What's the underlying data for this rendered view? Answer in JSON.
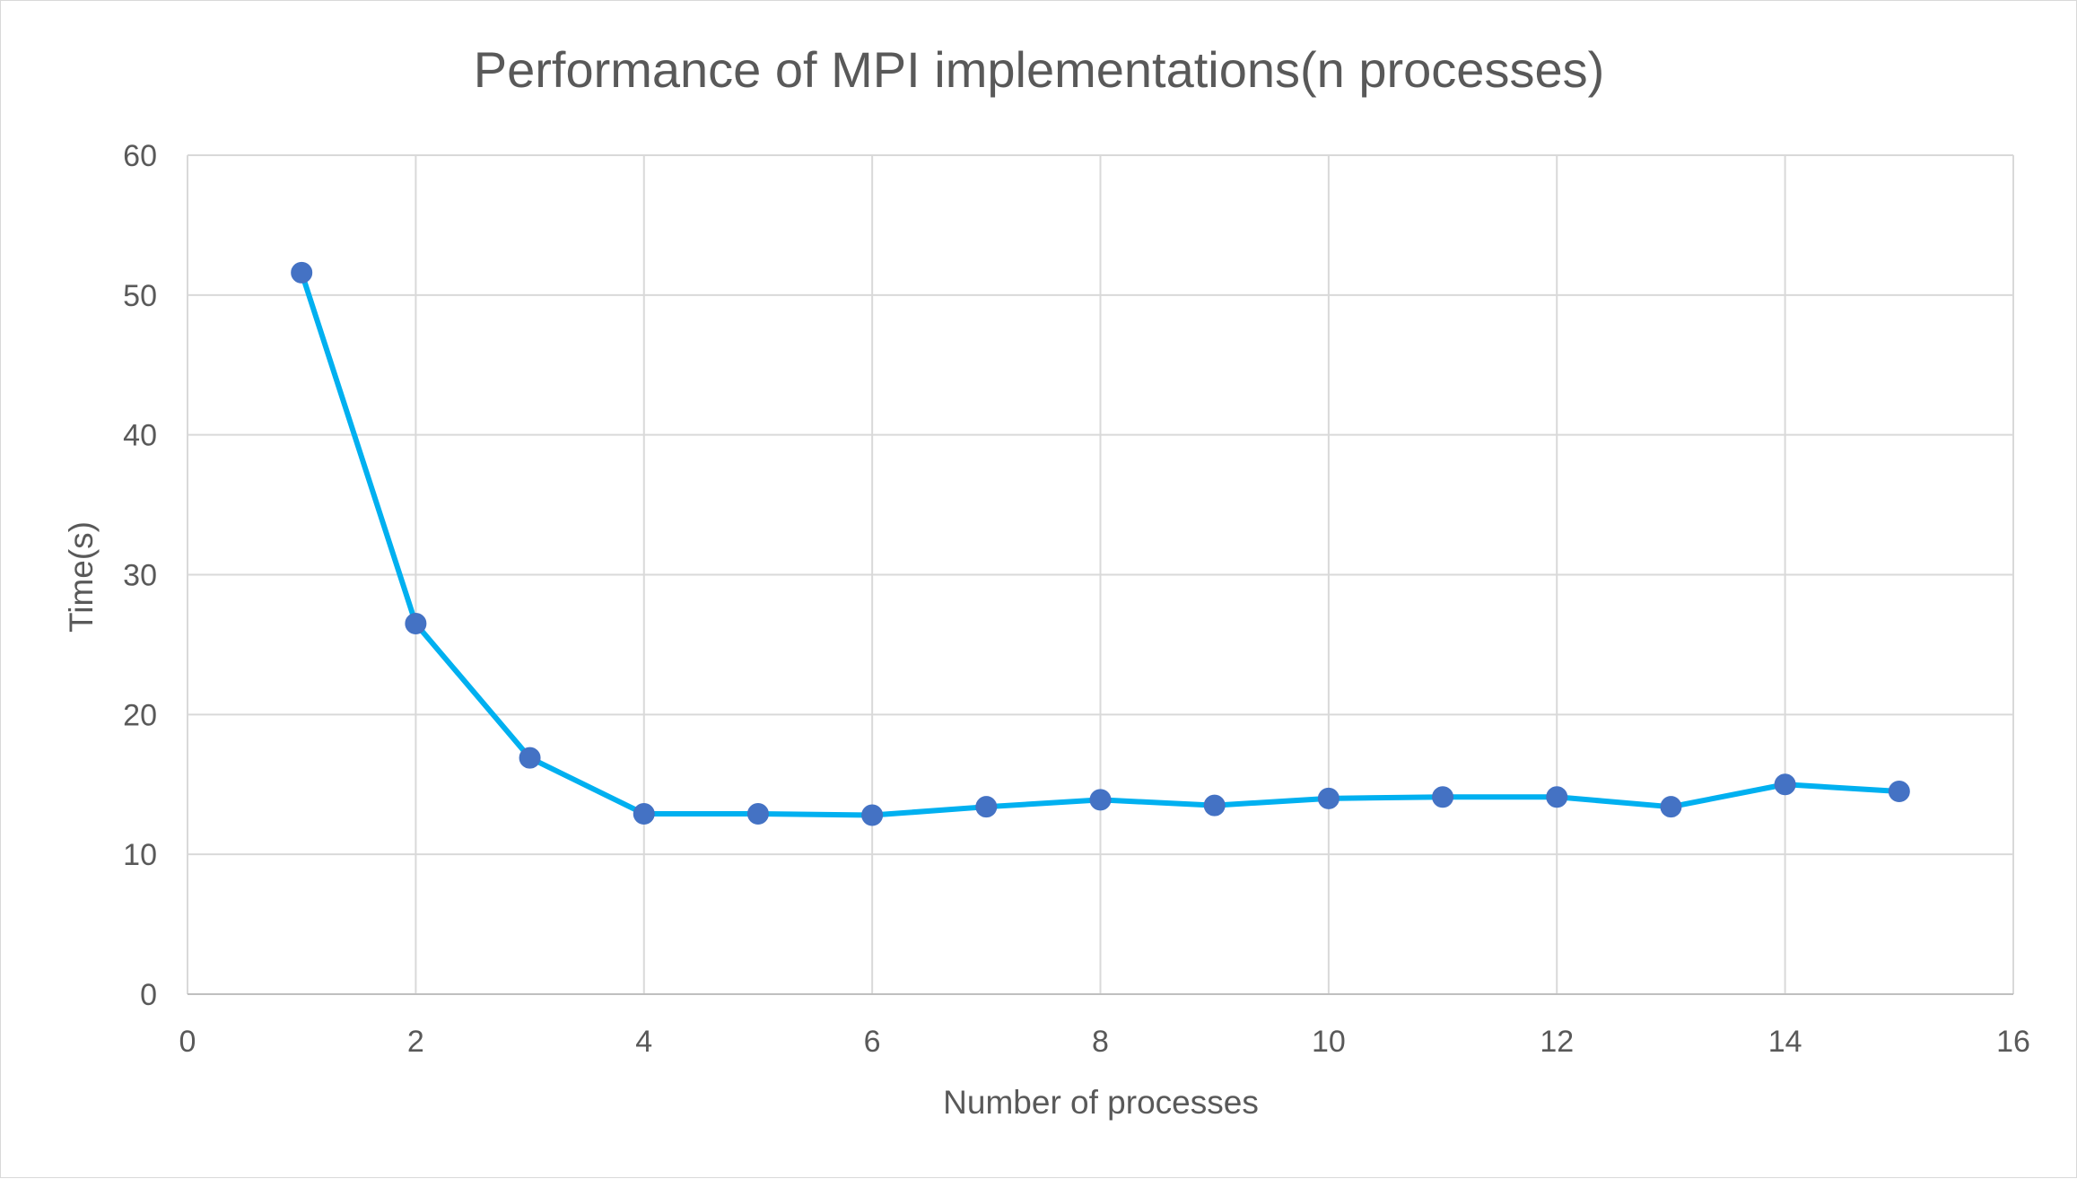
{
  "chart_data": {
    "type": "line",
    "title": "Performance of MPI implementations(n processes)",
    "xlabel": "Number of processes",
    "ylabel": "Time(s)",
    "xlim": [
      0,
      16
    ],
    "ylim": [
      0,
      60
    ],
    "x_ticks": [
      0,
      2,
      4,
      6,
      8,
      10,
      12,
      14,
      16
    ],
    "y_ticks": [
      0,
      10,
      20,
      30,
      40,
      50,
      60
    ],
    "grid": true,
    "legend": "none",
    "line_color": "#00b0f0",
    "marker_color": "#4472c4",
    "gridline_color": "#d9d9d9",
    "text_color": "#595959",
    "series": [
      {
        "x": [
          1,
          2,
          3,
          4,
          5,
          6,
          7,
          8,
          9,
          10,
          11,
          12,
          13,
          14,
          15
        ],
        "values": [
          51.6,
          26.5,
          16.9,
          12.9,
          12.9,
          12.8,
          13.4,
          13.9,
          13.5,
          14.0,
          14.1,
          14.1,
          13.4,
          15.0,
          14.5
        ]
      }
    ]
  }
}
